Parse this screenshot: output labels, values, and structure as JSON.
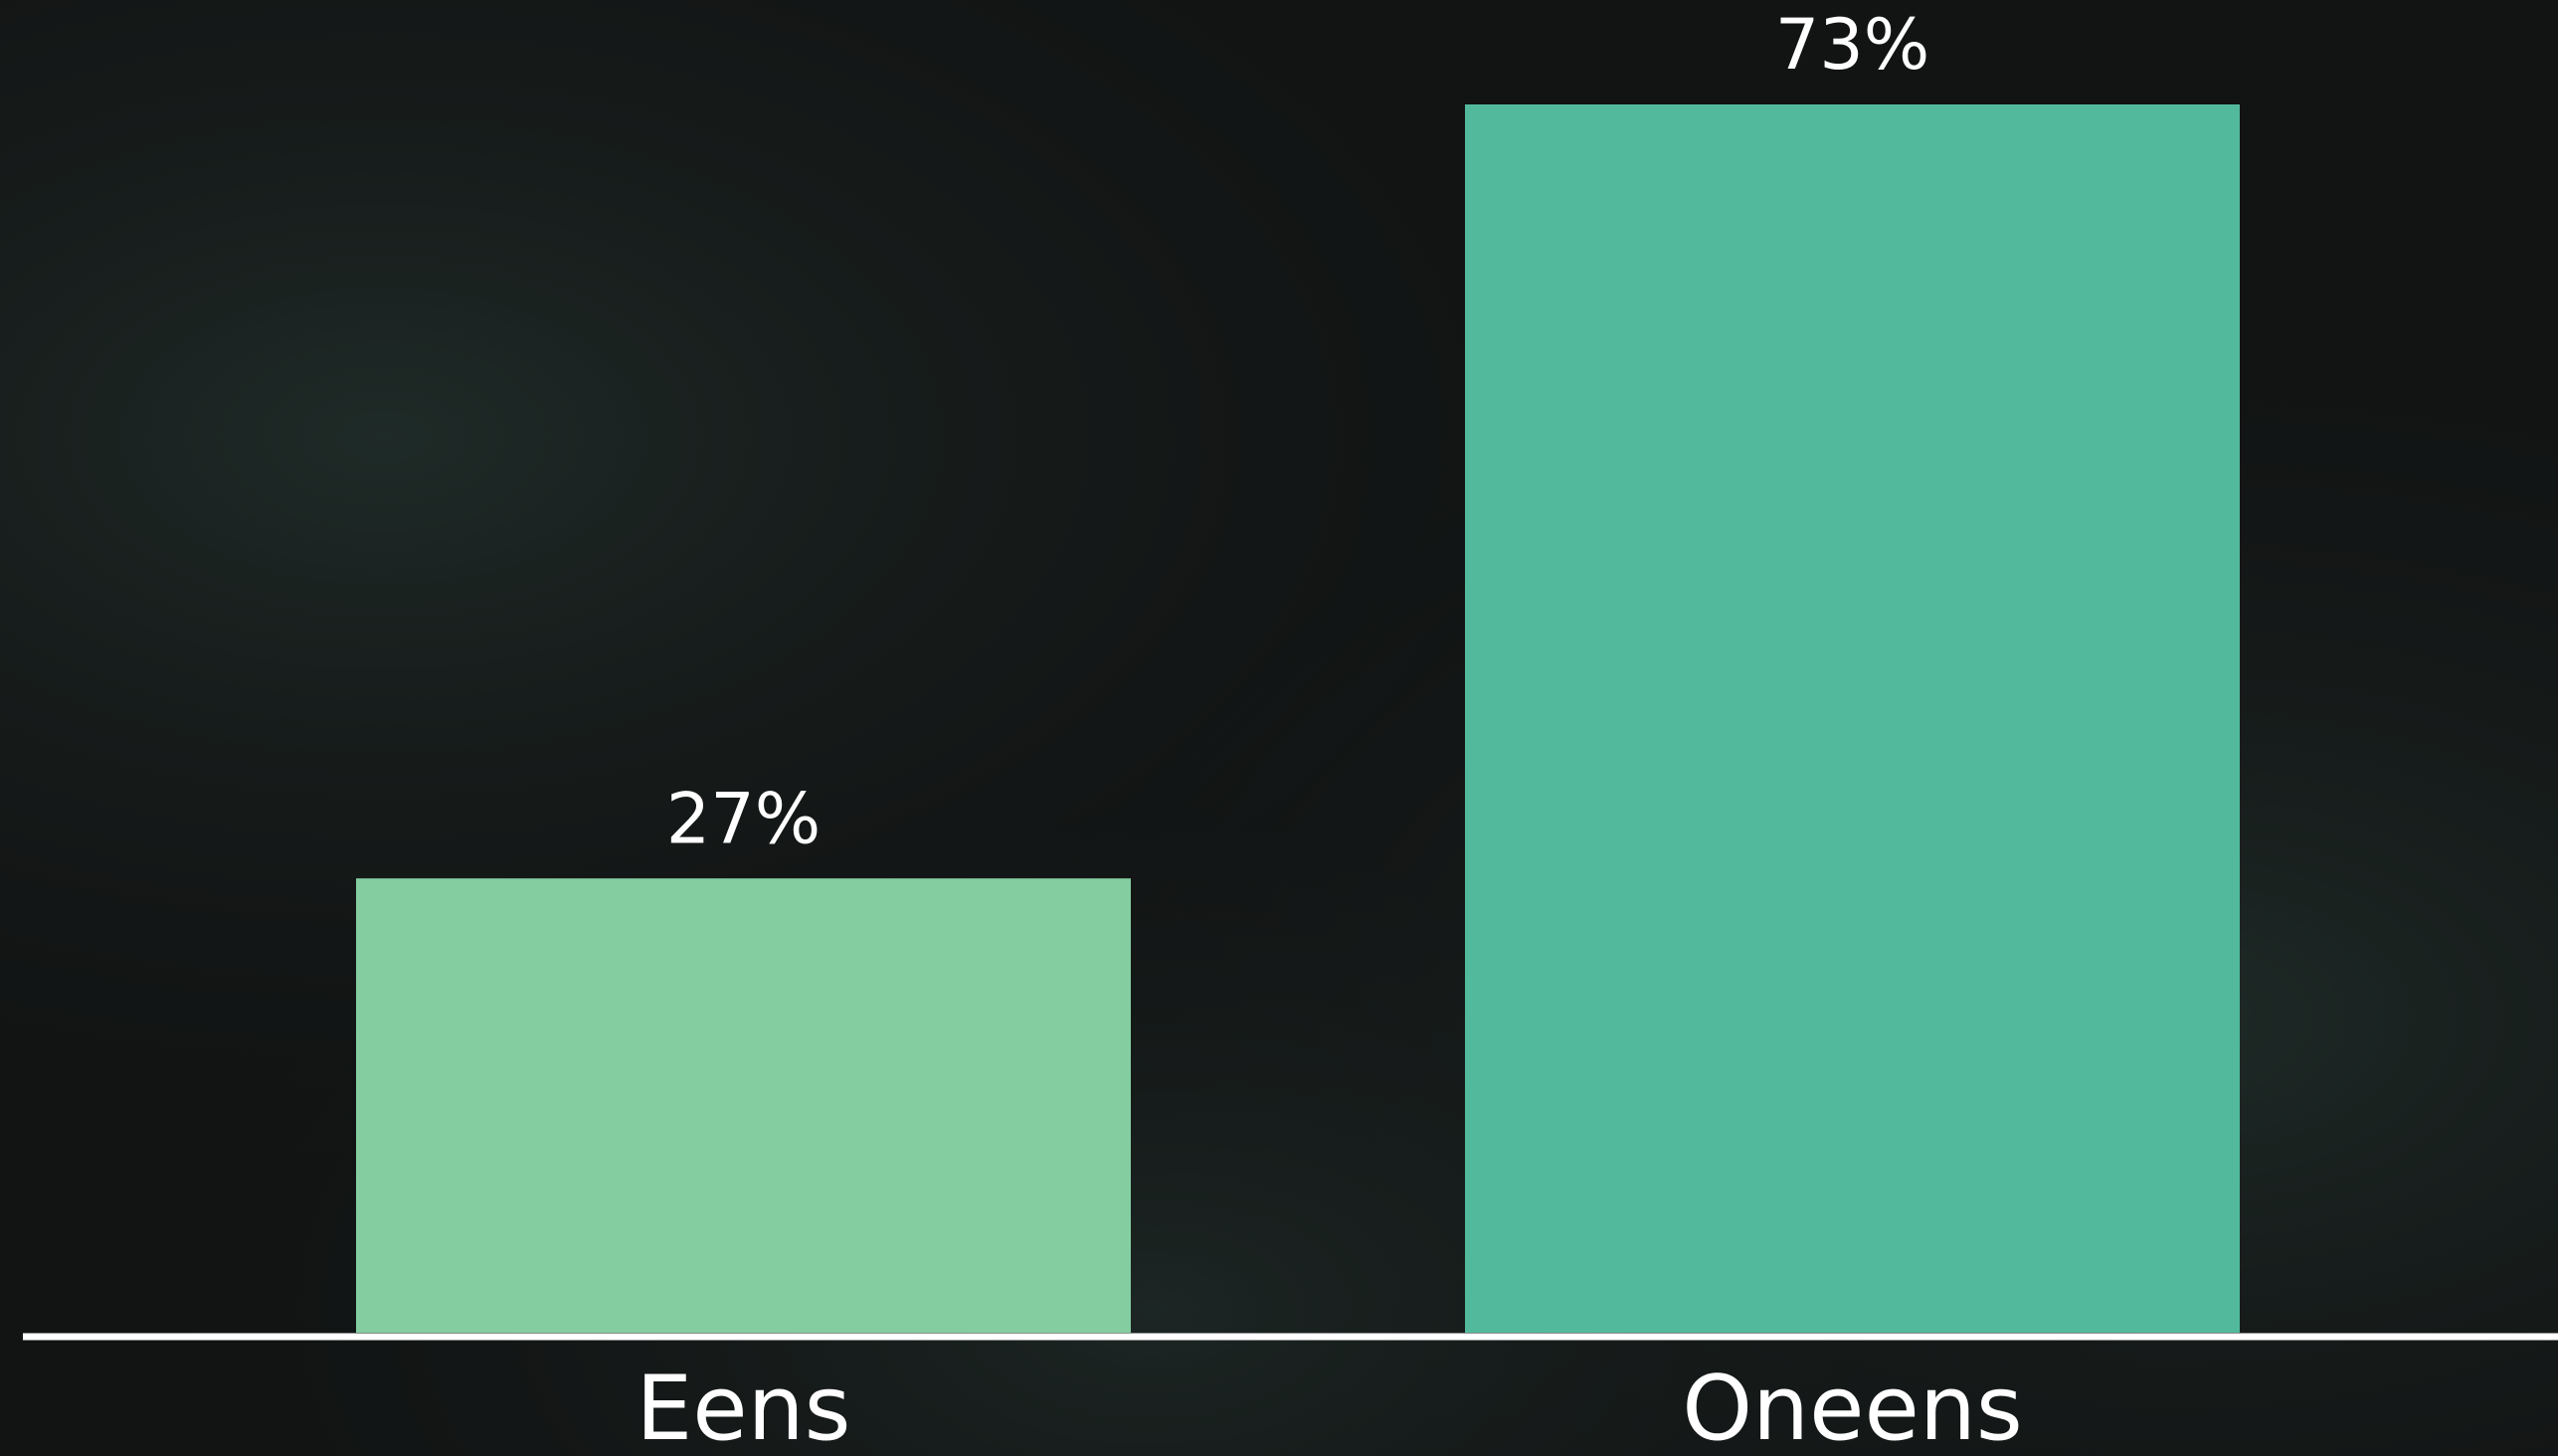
{
  "chart_data": {
    "type": "bar",
    "categories": [
      "Eens",
      "Oneens"
    ],
    "values": [
      27,
      73
    ],
    "value_labels": [
      "27%",
      "73%"
    ],
    "colors": [
      "#84cda1",
      "#52b99c"
    ]
  }
}
